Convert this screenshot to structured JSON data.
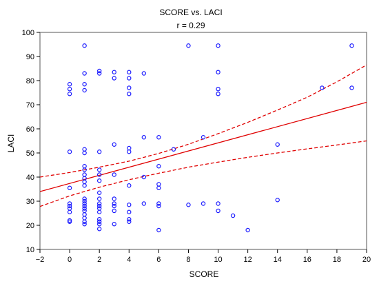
{
  "chart_data": {
    "type": "scatter",
    "title": "SCORE vs. LACI",
    "subtitle": "r = 0.29",
    "xlabel": "SCORE",
    "ylabel": "LACI",
    "xlim": [
      -2,
      20
    ],
    "ylim": [
      10,
      100
    ],
    "xticks": [
      "-2",
      "0",
      "2",
      "4",
      "6",
      "8",
      "10",
      "12",
      "14",
      "16",
      "18",
      "20"
    ],
    "yticks": [
      "10",
      "20",
      "30",
      "40",
      "50",
      "60",
      "70",
      "80",
      "90",
      "100"
    ],
    "grid": false,
    "colors": {
      "points": "#1a1aff",
      "fit": "#e00000",
      "ci": "#e00000"
    },
    "points": [
      [
        0,
        22
      ],
      [
        0,
        21.5
      ],
      [
        0,
        25.5
      ],
      [
        0,
        27
      ],
      [
        0,
        28
      ],
      [
        0,
        29
      ],
      [
        0,
        35.5
      ],
      [
        0,
        50.5
      ],
      [
        0,
        74.5
      ],
      [
        0,
        76.5
      ],
      [
        0,
        78.5
      ],
      [
        1,
        20.5
      ],
      [
        1,
        21.5
      ],
      [
        1,
        23
      ],
      [
        1,
        24.5
      ],
      [
        1,
        26
      ],
      [
        1,
        27
      ],
      [
        1,
        28
      ],
      [
        1,
        29
      ],
      [
        1,
        30
      ],
      [
        1,
        31
      ],
      [
        1,
        36.5
      ],
      [
        1,
        38
      ],
      [
        1,
        39.5
      ],
      [
        1,
        41
      ],
      [
        1,
        43
      ],
      [
        1,
        44.5
      ],
      [
        1,
        50
      ],
      [
        1,
        51.5
      ],
      [
        1,
        76
      ],
      [
        1,
        78.5
      ],
      [
        1,
        83
      ],
      [
        1,
        94.5
      ],
      [
        2,
        18.5
      ],
      [
        2,
        20.5
      ],
      [
        2,
        21.5
      ],
      [
        2,
        22.5
      ],
      [
        2,
        25.5
      ],
      [
        2,
        27
      ],
      [
        2,
        28
      ],
      [
        2,
        29
      ],
      [
        2,
        31
      ],
      [
        2,
        33.5
      ],
      [
        2,
        38.5
      ],
      [
        2,
        41
      ],
      [
        2,
        43
      ],
      [
        2,
        50.5
      ],
      [
        2,
        83
      ],
      [
        2,
        84
      ],
      [
        3,
        20.5
      ],
      [
        3,
        26
      ],
      [
        3,
        28
      ],
      [
        3,
        29
      ],
      [
        3,
        31
      ],
      [
        3,
        41
      ],
      [
        3,
        53.5
      ],
      [
        3,
        81
      ],
      [
        3,
        83.5
      ],
      [
        4,
        21.5
      ],
      [
        4,
        22.5
      ],
      [
        4,
        25.5
      ],
      [
        4,
        28.5
      ],
      [
        4,
        36.5
      ],
      [
        4,
        50.5
      ],
      [
        4,
        52
      ],
      [
        4,
        74.5
      ],
      [
        4,
        77
      ],
      [
        4,
        81
      ],
      [
        4,
        83.5
      ],
      [
        5,
        29
      ],
      [
        5,
        40
      ],
      [
        5,
        56.5
      ],
      [
        5,
        83
      ],
      [
        6,
        18
      ],
      [
        6,
        28
      ],
      [
        6,
        29
      ],
      [
        6,
        35.5
      ],
      [
        6,
        37
      ],
      [
        6,
        44.5
      ],
      [
        6,
        56.5
      ],
      [
        7,
        51.5
      ],
      [
        8,
        28.5
      ],
      [
        8,
        94.5
      ],
      [
        9,
        29
      ],
      [
        9,
        56.5
      ],
      [
        10,
        26
      ],
      [
        10,
        29
      ],
      [
        10,
        74.5
      ],
      [
        10,
        76.5
      ],
      [
        10,
        83.5
      ],
      [
        10,
        94.5
      ],
      [
        11,
        24
      ],
      [
        12,
        18
      ],
      [
        14,
        30.5
      ],
      [
        14,
        53.5
      ],
      [
        17,
        77
      ],
      [
        19,
        77
      ],
      [
        19,
        94.5
      ]
    ],
    "fit_line": {
      "x": [
        -2,
        20
      ],
      "y": [
        34,
        71
      ]
    },
    "ci_lower": {
      "x": [
        -2,
        0,
        2,
        4,
        6,
        8,
        10,
        12,
        14,
        16,
        18,
        20
      ],
      "y": [
        27.8,
        32.2,
        35.8,
        38.9,
        41.6,
        44.1,
        46.2,
        48.2,
        50.0,
        51.7,
        53.3,
        55
      ]
    },
    "ci_upper": {
      "x": [
        -2,
        0,
        2,
        4,
        6,
        8,
        10,
        12,
        14,
        16,
        18,
        20
      ],
      "y": [
        40,
        41.9,
        44.1,
        46.6,
        49.8,
        53.6,
        58.0,
        62.7,
        67.8,
        73.1,
        79.5,
        86.5
      ]
    }
  }
}
